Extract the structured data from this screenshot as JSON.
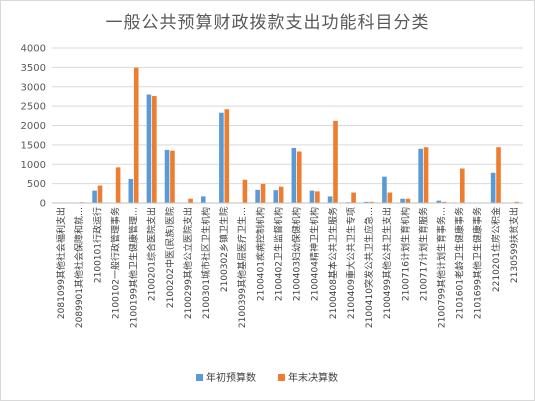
{
  "chart_data": {
    "type": "bar",
    "title": "一般公共预算财政拨款支出功能科目分类",
    "xlabel": "",
    "ylabel": "",
    "ylim": [
      0,
      4000
    ],
    "y_ticks": [
      0,
      500,
      1000,
      1500,
      2000,
      2500,
      3000,
      3500,
      4000
    ],
    "grid": true,
    "legend_position": "bottom",
    "colors": [
      "#5b9bd5",
      "#ed7d31"
    ],
    "categories": [
      "2081099其他社会福利支出",
      "2089901其他社会保障和就…",
      "2100101行政运行",
      "2100102一般行政管理事务",
      "2100199其他卫生健康管理…",
      "2100201综合医院支出",
      "2100202中医(民族)医院",
      "2100299其他公立医院支出",
      "2100301城市社区卫生机构",
      "2100302乡镇卫生院",
      "2100399其他基层医疗卫生…",
      "2100401疾病控制机构",
      "2100402卫生监督机构",
      "2100403妇幼保健机构",
      "2100404精神卫生机构",
      "2100408基本公共卫生服务",
      "2100409重大公共卫生专项",
      "2100410突发公共卫生应急…",
      "2100499其他公共卫生支出",
      "2100716计划生育机构",
      "2100717计划生育服务",
      "2100799其他计划生育事务…",
      "2101601老龄卫生健康事务",
      "2101699其他卫生健康事务",
      "2210201住房公积金",
      "2130599扶贫支出"
    ],
    "series": [
      {
        "name": "年初预算数",
        "values": [
          5,
          0,
          320,
          0,
          620,
          2800,
          1370,
          0,
          170,
          2330,
          0,
          340,
          330,
          1420,
          320,
          170,
          20,
          30,
          680,
          110,
          1400,
          60,
          0,
          0,
          780,
          0
        ]
      },
      {
        "name": "年末决算数",
        "values": [
          10,
          20,
          450,
          920,
          3490,
          2760,
          1350,
          110,
          0,
          2420,
          600,
          490,
          420,
          1330,
          300,
          2120,
          270,
          30,
          270,
          110,
          1440,
          30,
          890,
          0,
          1440,
          30
        ]
      }
    ]
  }
}
